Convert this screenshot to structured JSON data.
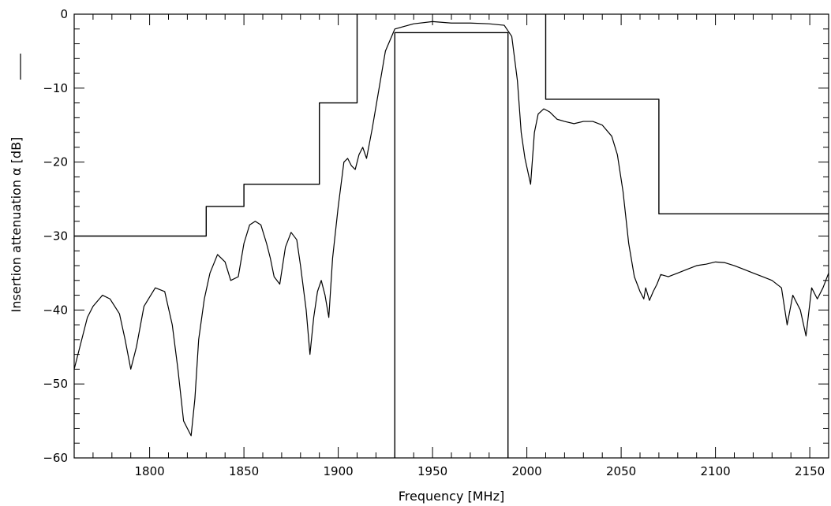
{
  "chart_data": {
    "type": "line",
    "title": "",
    "xlabel": "Frequency [MHz]",
    "ylabel": "Insertion attenuation α [dB]",
    "xlim": [
      1760,
      2160
    ],
    "ylim": [
      -60,
      0
    ],
    "x_ticks": [
      "1800",
      "1850",
      "1900",
      "1950",
      "2000",
      "2050",
      "2100",
      "2150"
    ],
    "y_ticks": [
      "0",
      "−10",
      "−20",
      "−30",
      "−40",
      "−50",
      "−60"
    ],
    "grid": false,
    "colors": {
      "line": "#000000",
      "background": "#ffffff"
    },
    "series": [
      {
        "role": "measured-response",
        "x": [
          1760,
          1763,
          1767,
          1770,
          1775,
          1779,
          1784,
          1787,
          1790,
          1793,
          1797,
          1803,
          1808,
          1812,
          1815,
          1818,
          1820,
          1822,
          1824,
          1826,
          1829,
          1832,
          1836,
          1840,
          1843,
          1847,
          1850,
          1853,
          1856,
          1859,
          1862,
          1864,
          1866,
          1869,
          1872,
          1875,
          1878,
          1880,
          1883,
          1885,
          1887,
          1889,
          1891,
          1893,
          1895,
          1897,
          1900,
          1903,
          1905,
          1907,
          1909,
          1911,
          1913,
          1915,
          1918,
          1921,
          1925,
          1930,
          1940,
          1950,
          1960,
          1970,
          1980,
          1988,
          1992,
          1995,
          1997,
          1999,
          2002,
          2004,
          2006,
          2009,
          2012,
          2016,
          2020,
          2025,
          2030,
          2035,
          2040,
          2045,
          2048,
          2051,
          2054,
          2057,
          2060,
          2062,
          2063,
          2065,
          2067,
          2069,
          2071,
          2075,
          2080,
          2085,
          2090,
          2095,
          2100,
          2105,
          2110,
          2115,
          2120,
          2125,
          2130,
          2135,
          2138,
          2141,
          2145,
          2148,
          2151,
          2154,
          2157,
          2160
        ],
        "y": [
          -48,
          -45,
          -41,
          -39.5,
          -38,
          -38.5,
          -40.5,
          -44,
          -48,
          -45,
          -39.5,
          -37,
          -37.5,
          -42,
          -48,
          -55,
          -56,
          -57,
          -52,
          -44,
          -38.5,
          -35,
          -32.5,
          -33.5,
          -36,
          -35.5,
          -31,
          -28.5,
          -28,
          -28.5,
          -31,
          -33,
          -35.5,
          -36.5,
          -31.5,
          -29.5,
          -30.5,
          -34,
          -40,
          -46,
          -41,
          -37.5,
          -36,
          -38,
          -41,
          -33,
          -26,
          -20,
          -19.5,
          -20.5,
          -21,
          -19,
          -18,
          -19.5,
          -15.5,
          -11,
          -5,
          -2,
          -1.3,
          -1,
          -1.2,
          -1.2,
          -1.3,
          -1.5,
          -3,
          -9,
          -16,
          -19.5,
          -23,
          -16,
          -13.5,
          -12.8,
          -13.2,
          -14.2,
          -14.5,
          -14.8,
          -14.5,
          -14.5,
          -15,
          -16.5,
          -19,
          -24,
          -31,
          -35.5,
          -37.5,
          -38.5,
          -37,
          -38.7,
          -37.5,
          -36.5,
          -35.2,
          -35.5,
          -35,
          -34.5,
          -34,
          -33.8,
          -33.5,
          -33.6,
          -34,
          -34.5,
          -35,
          -35.5,
          -36,
          -37,
          -42,
          -38,
          -40,
          -43.5,
          -37,
          -38.5,
          -37,
          -35
        ]
      },
      {
        "role": "stopband-mask",
        "x": [
          1760,
          1830,
          1830,
          1850,
          1850,
          1890,
          1890,
          1910,
          1910
        ],
        "y": [
          -30,
          -30,
          -26,
          -26,
          -23,
          -23,
          -12,
          -12,
          0
        ]
      },
      {
        "role": "stopband-mask",
        "x": [
          2010,
          2010,
          2070,
          2070,
          2160
        ],
        "y": [
          0,
          -11.5,
          -11.5,
          -27,
          -27
        ]
      },
      {
        "role": "passband-mask",
        "x": [
          1930,
          1930,
          1990,
          1990
        ],
        "y": [
          -60,
          -2.5,
          -2.5,
          -60
        ]
      }
    ]
  }
}
